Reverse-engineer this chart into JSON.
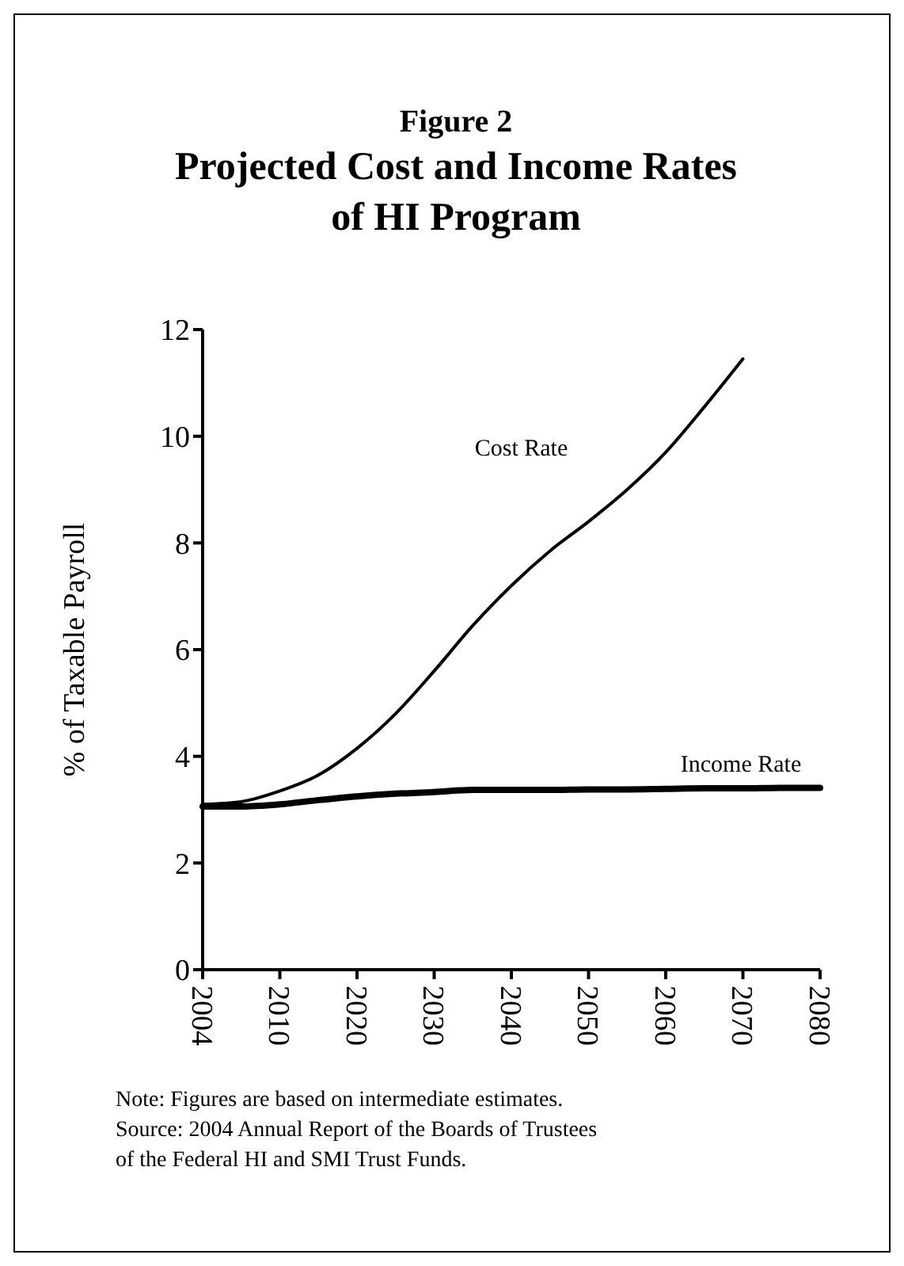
{
  "chart_data": {
    "type": "line",
    "title": "Figure 2",
    "subtitle": "Projected Cost and Income Rates of HI Program",
    "ylabel": "% of Taxable Payroll",
    "categories": [
      "2004",
      null,
      "2010",
      null,
      "2020",
      null,
      "2030",
      null,
      "2040",
      null,
      "2050",
      null,
      "2060",
      null,
      "2070",
      null,
      "2080"
    ],
    "series": [
      {
        "name": "Cost Rate",
        "color": "#000000",
        "values": [
          3.1,
          3.15,
          3.35,
          3.65,
          4.15,
          4.8,
          5.6,
          6.45,
          7.2,
          7.85,
          8.4,
          9.0,
          9.7,
          10.55,
          11.45,
          null,
          null
        ]
      },
      {
        "name": "Income Rate",
        "color": "#000000",
        "values": [
          3.06,
          3.06,
          3.1,
          3.18,
          3.25,
          3.3,
          3.33,
          3.37,
          3.37,
          3.37,
          3.38,
          3.38,
          3.39,
          3.4,
          3.4,
          3.41,
          3.41
        ]
      }
    ],
    "ylim": [
      0,
      12
    ],
    "yticks": [
      0,
      2,
      4,
      6,
      8,
      10,
      12
    ],
    "grid": false,
    "marker": "none",
    "line_style": "solid",
    "annotations": [
      "Note:  Figures are based on intermediate estimates.",
      "Source:  2004 Annual Report of the Boards of Trustees",
      "of the Federal HI and SMI Trust Funds."
    ]
  }
}
